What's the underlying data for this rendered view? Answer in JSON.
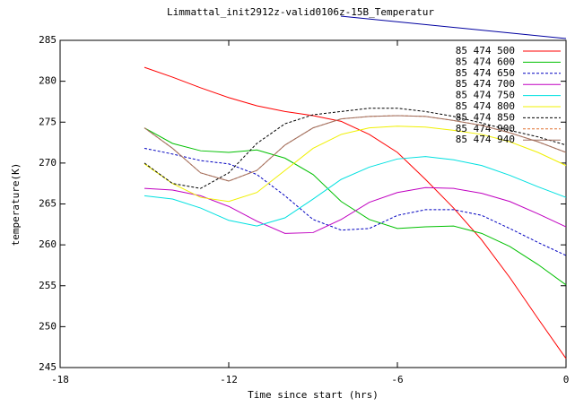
{
  "chart_data": {
    "type": "line",
    "title": "Limmattal_init2912z-valid0106z-15B_Temperatur",
    "x_label": "Time since start (hrs)",
    "y_label": "temperature(K)",
    "x": [
      -15,
      -14,
      -13,
      -12,
      -11,
      -10,
      -9,
      -8,
      -7,
      -6,
      -5,
      -4,
      -3,
      -2,
      -1,
      0
    ],
    "xlim": [
      -18,
      0
    ],
    "xticks": [
      -18,
      -12,
      -6,
      0
    ],
    "ylim": [
      245,
      285
    ],
    "yticks": [
      245,
      250,
      255,
      260,
      265,
      270,
      275,
      280,
      285
    ],
    "legend": "top-right",
    "series": [
      {
        "name": "85 474 500",
        "color": "#ff0000",
        "dashed": false,
        "values": [
          281.7,
          280.5,
          279.2,
          278.0,
          277.0,
          276.3,
          275.8,
          275.1,
          273.5,
          271.3,
          268.0,
          264.5,
          260.6,
          256.0,
          251.0,
          246.1
        ]
      },
      {
        "name": "85 474 600",
        "color": "#00c000",
        "dashed": false,
        "values": [
          274.3,
          272.4,
          271.5,
          271.3,
          271.6,
          270.6,
          268.6,
          265.3,
          263.1,
          262.0,
          262.2,
          262.3,
          261.4,
          259.8,
          257.6,
          255.1
        ]
      },
      {
        "name": "85 474 650",
        "color": "#0000c0",
        "dashed": true,
        "values": [
          271.8,
          271.1,
          270.3,
          269.9,
          268.6,
          266.0,
          263.1,
          261.8,
          262.0,
          263.6,
          264.3,
          264.3,
          263.6,
          262.0,
          260.3,
          258.7
        ]
      },
      {
        "name": "85 474 700",
        "color": "#c000c0",
        "dashed": false,
        "values": [
          266.9,
          266.7,
          266.0,
          264.7,
          262.9,
          261.4,
          261.5,
          263.1,
          265.2,
          266.4,
          267.0,
          266.9,
          266.3,
          265.3,
          263.8,
          262.2
        ]
      },
      {
        "name": "85 474 750",
        "color": "#00e0e0",
        "dashed": false,
        "values": [
          266.0,
          265.6,
          264.5,
          263.0,
          262.3,
          263.3,
          265.6,
          268.0,
          269.5,
          270.5,
          270.8,
          270.4,
          269.7,
          268.5,
          267.1,
          265.8
        ]
      },
      {
        "name": "85 474 800",
        "color": "#f0f000",
        "dashed": false,
        "values": [
          269.9,
          267.5,
          265.8,
          265.3,
          266.4,
          269.1,
          271.8,
          273.5,
          274.3,
          274.5,
          274.4,
          274.0,
          273.5,
          272.6,
          271.3,
          269.7
        ]
      },
      {
        "name": "85 474 850",
        "color": "#000000",
        "dashed": true,
        "values": [
          270.0,
          267.5,
          266.9,
          268.8,
          272.4,
          274.8,
          275.9,
          276.3,
          276.7,
          276.7,
          276.3,
          275.7,
          274.9,
          274.0,
          273.2,
          272.2
        ]
      },
      {
        "name": "85 474 900",
        "color": "#e07030",
        "dashed": true,
        "values": [
          274.3,
          271.8,
          268.8,
          267.8,
          269.1,
          272.2,
          274.3,
          275.4,
          275.7,
          275.8,
          275.7,
          275.2,
          274.6,
          273.7,
          272.6,
          271.3
        ]
      },
      {
        "name": "85 474 940",
        "color": "#a07060",
        "dashed": false,
        "values": [
          274.3,
          271.8,
          268.8,
          267.8,
          269.1,
          272.2,
          274.3,
          275.4,
          275.7,
          275.8,
          275.7,
          275.2,
          274.6,
          273.7,
          272.6,
          271.3
        ]
      }
    ]
  }
}
